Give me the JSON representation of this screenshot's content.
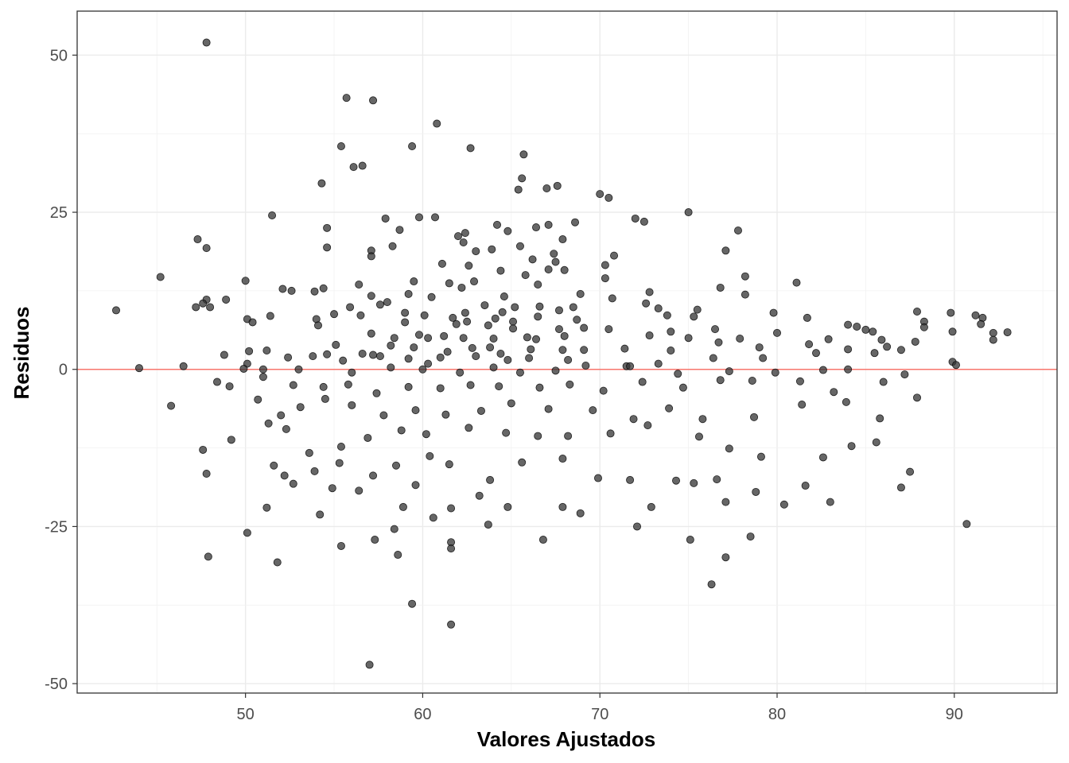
{
  "chart_data": {
    "type": "scatter",
    "title": "",
    "xlabel": "Valores Ajustados",
    "ylabel": "Residuos",
    "xlim": [
      40.5,
      95.8
    ],
    "ylim": [
      -51.5,
      57
    ],
    "x_ticks": [
      50,
      60,
      70,
      80,
      90
    ],
    "x_tick_labels": [
      "50",
      "60",
      "70",
      "80",
      "90"
    ],
    "y_ticks": [
      -50,
      -25,
      0,
      25,
      50
    ],
    "y_tick_labels": [
      "-50",
      "-25",
      "0",
      "25",
      "50"
    ],
    "grid": true,
    "theme": "bw",
    "reference_line": {
      "y": 0,
      "color": "#F8766D"
    },
    "point_color": "#333333",
    "points": [
      [
        47.8,
        52.0
      ],
      [
        55.7,
        43.2
      ],
      [
        57.2,
        42.8
      ],
      [
        60.8,
        39.1
      ],
      [
        55.4,
        35.5
      ],
      [
        59.4,
        35.5
      ],
      [
        62.7,
        35.2
      ],
      [
        65.7,
        34.2
      ],
      [
        56.1,
        32.2
      ],
      [
        56.6,
        32.4
      ],
      [
        65.6,
        30.4
      ],
      [
        65.4,
        28.6
      ],
      [
        67.0,
        28.8
      ],
      [
        67.6,
        29.2
      ],
      [
        54.3,
        29.6
      ],
      [
        70.0,
        27.9
      ],
      [
        70.5,
        27.3
      ],
      [
        51.5,
        24.5
      ],
      [
        57.9,
        24.0
      ],
      [
        59.8,
        24.2
      ],
      [
        60.7,
        24.2
      ],
      [
        72.0,
        24.0
      ],
      [
        72.5,
        23.5
      ],
      [
        75.0,
        25.0
      ],
      [
        64.2,
        23.0
      ],
      [
        66.4,
        22.6
      ],
      [
        67.1,
        23.0
      ],
      [
        68.6,
        23.4
      ],
      [
        64.8,
        22.0
      ],
      [
        77.8,
        22.1
      ],
      [
        54.6,
        22.5
      ],
      [
        58.7,
        22.2
      ],
      [
        62.0,
        21.2
      ],
      [
        62.4,
        21.7
      ],
      [
        67.9,
        20.7
      ],
      [
        47.3,
        20.7
      ],
      [
        47.8,
        19.3
      ],
      [
        54.6,
        19.4
      ],
      [
        58.3,
        19.6
      ],
      [
        62.3,
        20.2
      ],
      [
        63.0,
        18.8
      ],
      [
        63.9,
        19.1
      ],
      [
        65.5,
        19.6
      ],
      [
        67.4,
        18.4
      ],
      [
        57.1,
        18.9
      ],
      [
        57.1,
        18.0
      ],
      [
        66.2,
        17.5
      ],
      [
        67.5,
        17.1
      ],
      [
        70.8,
        18.1
      ],
      [
        77.1,
        18.9
      ],
      [
        61.1,
        16.8
      ],
      [
        62.6,
        16.5
      ],
      [
        64.4,
        15.7
      ],
      [
        65.8,
        15.0
      ],
      [
        67.1,
        15.9
      ],
      [
        68.0,
        15.8
      ],
      [
        70.3,
        16.6
      ],
      [
        78.2,
        14.8
      ],
      [
        45.2,
        14.7
      ],
      [
        50.0,
        14.1
      ],
      [
        56.4,
        13.5
      ],
      [
        59.5,
        14.0
      ],
      [
        61.5,
        13.7
      ],
      [
        62.9,
        14.0
      ],
      [
        66.5,
        13.5
      ],
      [
        70.3,
        14.5
      ],
      [
        76.8,
        13.0
      ],
      [
        81.1,
        13.8
      ],
      [
        52.1,
        12.8
      ],
      [
        52.6,
        12.5
      ],
      [
        53.9,
        12.4
      ],
      [
        54.4,
        12.9
      ],
      [
        59.2,
        12.0
      ],
      [
        60.5,
        11.5
      ],
      [
        62.2,
        13.0
      ],
      [
        64.6,
        11.6
      ],
      [
        68.9,
        12.0
      ],
      [
        70.7,
        11.3
      ],
      [
        72.8,
        12.3
      ],
      [
        78.2,
        11.9
      ],
      [
        47.8,
        11.1
      ],
      [
        48.9,
        11.1
      ],
      [
        57.1,
        11.7
      ],
      [
        58.0,
        10.7
      ],
      [
        57.6,
        10.3
      ],
      [
        63.5,
        10.2
      ],
      [
        66.6,
        10.0
      ],
      [
        68.5,
        9.9
      ],
      [
        47.6,
        10.5
      ],
      [
        48.0,
        9.9
      ],
      [
        47.2,
        9.9
      ],
      [
        42.7,
        9.4
      ],
      [
        55.0,
        8.8
      ],
      [
        55.9,
        9.9
      ],
      [
        59.0,
        9.0
      ],
      [
        62.4,
        9.0
      ],
      [
        64.5,
        9.1
      ],
      [
        65.2,
        9.9
      ],
      [
        67.7,
        9.4
      ],
      [
        72.6,
        10.5
      ],
      [
        73.3,
        9.7
      ],
      [
        75.5,
        9.5
      ],
      [
        79.8,
        9.0
      ],
      [
        87.9,
        9.2
      ],
      [
        89.8,
        9.0
      ],
      [
        91.2,
        8.6
      ],
      [
        91.6,
        8.2
      ],
      [
        50.1,
        8.0
      ],
      [
        50.4,
        7.5
      ],
      [
        51.4,
        8.5
      ],
      [
        54.0,
        8.0
      ],
      [
        56.5,
        8.6
      ],
      [
        60.1,
        8.6
      ],
      [
        61.7,
        8.2
      ],
      [
        64.1,
        8.1
      ],
      [
        65.1,
        7.6
      ],
      [
        66.5,
        8.4
      ],
      [
        68.7,
        7.9
      ],
      [
        73.8,
        8.6
      ],
      [
        75.3,
        8.4
      ],
      [
        81.7,
        8.2
      ],
      [
        84.0,
        7.1
      ],
      [
        84.5,
        6.8
      ],
      [
        85.0,
        6.3
      ],
      [
        88.3,
        7.6
      ],
      [
        91.5,
        7.2
      ],
      [
        54.1,
        7.0
      ],
      [
        59.0,
        7.5
      ],
      [
        61.9,
        7.2
      ],
      [
        62.5,
        7.6
      ],
      [
        63.7,
        7.0
      ],
      [
        65.1,
        6.5
      ],
      [
        67.7,
        6.4
      ],
      [
        69.1,
        6.6
      ],
      [
        70.5,
        6.4
      ],
      [
        74.0,
        6.0
      ],
      [
        76.5,
        6.4
      ],
      [
        80.0,
        5.8
      ],
      [
        85.4,
        6.0
      ],
      [
        88.3,
        6.7
      ],
      [
        89.9,
        6.0
      ],
      [
        92.2,
        5.8
      ],
      [
        93.0,
        5.9
      ],
      [
        57.1,
        5.7
      ],
      [
        58.4,
        5.0
      ],
      [
        59.8,
        5.5
      ],
      [
        60.3,
        5.0
      ],
      [
        61.2,
        5.3
      ],
      [
        62.3,
        5.0
      ],
      [
        64.0,
        4.9
      ],
      [
        65.9,
        5.1
      ],
      [
        66.4,
        4.8
      ],
      [
        68.0,
        5.3
      ],
      [
        72.8,
        5.4
      ],
      [
        75.0,
        5.0
      ],
      [
        77.9,
        4.9
      ],
      [
        81.8,
        4.0
      ],
      [
        85.9,
        4.7
      ],
      [
        87.8,
        4.4
      ],
      [
        92.2,
        4.7
      ],
      [
        51.2,
        3.0
      ],
      [
        53.8,
        2.1
      ],
      [
        55.1,
        3.9
      ],
      [
        56.6,
        2.5
      ],
      [
        57.2,
        2.3
      ],
      [
        58.2,
        3.8
      ],
      [
        59.5,
        3.5
      ],
      [
        61.4,
        2.8
      ],
      [
        62.8,
        3.4
      ],
      [
        63.8,
        3.5
      ],
      [
        64.4,
        2.5
      ],
      [
        66.1,
        3.2
      ],
      [
        67.9,
        3.1
      ],
      [
        69.1,
        3.1
      ],
      [
        71.4,
        3.3
      ],
      [
        74.0,
        3.0
      ],
      [
        76.7,
        4.3
      ],
      [
        79.0,
        3.5
      ],
      [
        82.9,
        4.8
      ],
      [
        84.0,
        3.2
      ],
      [
        86.2,
        3.6
      ],
      [
        87.0,
        3.1
      ],
      [
        48.8,
        2.3
      ],
      [
        50.2,
        2.9
      ],
      [
        50.1,
        0.9
      ],
      [
        52.4,
        1.9
      ],
      [
        54.6,
        2.4
      ],
      [
        55.5,
        1.4
      ],
      [
        57.6,
        2.1
      ],
      [
        59.2,
        1.7
      ],
      [
        60.3,
        0.9
      ],
      [
        61.0,
        1.9
      ],
      [
        63.0,
        2.1
      ],
      [
        64.8,
        1.5
      ],
      [
        66.0,
        1.8
      ],
      [
        68.2,
        1.5
      ],
      [
        71.5,
        0.5
      ],
      [
        73.3,
        0.9
      ],
      [
        76.4,
        1.8
      ],
      [
        79.2,
        1.8
      ],
      [
        82.2,
        2.6
      ],
      [
        85.5,
        2.6
      ],
      [
        89.9,
        1.2
      ],
      [
        90.1,
        0.7
      ],
      [
        44.0,
        0.2
      ],
      [
        46.5,
        0.5
      ],
      [
        49.9,
        0.1
      ],
      [
        51.0,
        0.0
      ],
      [
        53.0,
        0.0
      ],
      [
        56.0,
        -0.5
      ],
      [
        58.2,
        0.3
      ],
      [
        60.0,
        0.0
      ],
      [
        62.1,
        -0.5
      ],
      [
        64.0,
        0.3
      ],
      [
        65.5,
        -0.5
      ],
      [
        67.5,
        -0.2
      ],
      [
        69.2,
        0.6
      ],
      [
        71.7,
        0.5
      ],
      [
        74.4,
        -0.7
      ],
      [
        77.3,
        -0.3
      ],
      [
        79.9,
        -0.5
      ],
      [
        82.6,
        -0.1
      ],
      [
        84.0,
        0.0
      ],
      [
        87.2,
        -0.8
      ],
      [
        48.4,
        -2.0
      ],
      [
        49.1,
        -2.7
      ],
      [
        51.0,
        -1.2
      ],
      [
        52.7,
        -2.5
      ],
      [
        54.4,
        -2.8
      ],
      [
        55.8,
        -2.4
      ],
      [
        57.4,
        -3.8
      ],
      [
        59.2,
        -2.8
      ],
      [
        61.0,
        -3.0
      ],
      [
        62.7,
        -2.5
      ],
      [
        64.3,
        -2.7
      ],
      [
        66.6,
        -2.9
      ],
      [
        68.3,
        -2.4
      ],
      [
        70.2,
        -3.4
      ],
      [
        72.4,
        -2.0
      ],
      [
        74.7,
        -2.9
      ],
      [
        76.8,
        -1.7
      ],
      [
        78.6,
        -1.8
      ],
      [
        81.3,
        -1.9
      ],
      [
        83.2,
        -3.6
      ],
      [
        86.0,
        -2.0
      ],
      [
        87.9,
        -4.5
      ],
      [
        45.8,
        -5.8
      ],
      [
        47.6,
        -12.8
      ],
      [
        49.2,
        -11.2
      ],
      [
        51.3,
        -8.6
      ],
      [
        52.3,
        -9.5
      ],
      [
        53.1,
        -6.0
      ],
      [
        54.5,
        -4.7
      ],
      [
        56.0,
        -5.7
      ],
      [
        57.8,
        -7.3
      ],
      [
        59.6,
        -6.5
      ],
      [
        61.3,
        -7.2
      ],
      [
        63.3,
        -6.6
      ],
      [
        65.0,
        -5.4
      ],
      [
        67.1,
        -6.3
      ],
      [
        69.6,
        -6.5
      ],
      [
        71.9,
        -7.9
      ],
      [
        73.9,
        -6.2
      ],
      [
        75.8,
        -7.9
      ],
      [
        78.7,
        -7.6
      ],
      [
        81.4,
        -5.6
      ],
      [
        83.9,
        -5.2
      ],
      [
        85.8,
        -7.8
      ],
      [
        50.7,
        -4.8
      ],
      [
        52.0,
        -7.3
      ],
      [
        53.6,
        -13.3
      ],
      [
        55.4,
        -12.3
      ],
      [
        56.9,
        -10.9
      ],
      [
        58.8,
        -9.7
      ],
      [
        60.2,
        -10.3
      ],
      [
        62.6,
        -9.3
      ],
      [
        64.7,
        -10.1
      ],
      [
        66.5,
        -10.6
      ],
      [
        68.2,
        -10.6
      ],
      [
        70.6,
        -10.2
      ],
      [
        72.7,
        -8.9
      ],
      [
        75.6,
        -10.7
      ],
      [
        77.3,
        -12.6
      ],
      [
        79.1,
        -13.9
      ],
      [
        82.6,
        -14.0
      ],
      [
        85.6,
        -11.6
      ],
      [
        47.8,
        -16.6
      ],
      [
        51.6,
        -15.3
      ],
      [
        52.2,
        -16.9
      ],
      [
        53.9,
        -16.2
      ],
      [
        55.3,
        -14.9
      ],
      [
        57.2,
        -16.9
      ],
      [
        58.5,
        -15.3
      ],
      [
        60.4,
        -13.8
      ],
      [
        61.5,
        -15.1
      ],
      [
        63.8,
        -17.6
      ],
      [
        65.6,
        -14.8
      ],
      [
        67.9,
        -14.2
      ],
      [
        69.9,
        -17.3
      ],
      [
        71.7,
        -17.6
      ],
      [
        74.3,
        -17.7
      ],
      [
        76.6,
        -17.5
      ],
      [
        78.8,
        -19.5
      ],
      [
        81.6,
        -18.5
      ],
      [
        84.2,
        -12.2
      ],
      [
        87.5,
        -16.3
      ],
      [
        51.2,
        -22.0
      ],
      [
        52.7,
        -18.2
      ],
      [
        54.9,
        -18.9
      ],
      [
        56.4,
        -19.3
      ],
      [
        58.9,
        -21.9
      ],
      [
        59.6,
        -18.4
      ],
      [
        61.6,
        -22.1
      ],
      [
        63.2,
        -20.1
      ],
      [
        64.8,
        -21.9
      ],
      [
        67.9,
        -21.9
      ],
      [
        68.9,
        -22.9
      ],
      [
        72.9,
        -21.9
      ],
      [
        75.3,
        -18.1
      ],
      [
        77.1,
        -21.1
      ],
      [
        80.4,
        -21.5
      ],
      [
        83.0,
        -21.1
      ],
      [
        87.0,
        -18.8
      ],
      [
        90.7,
        -24.6
      ],
      [
        50.1,
        -26.0
      ],
      [
        54.2,
        -23.1
      ],
      [
        55.4,
        -28.1
      ],
      [
        57.3,
        -27.1
      ],
      [
        58.4,
        -25.4
      ],
      [
        60.6,
        -23.6
      ],
      [
        61.6,
        -27.5
      ],
      [
        63.7,
        -24.7
      ],
      [
        66.8,
        -27.1
      ],
      [
        72.1,
        -25.0
      ],
      [
        75.1,
        -27.1
      ],
      [
        78.5,
        -26.6
      ],
      [
        47.9,
        -29.8
      ],
      [
        51.8,
        -30.7
      ],
      [
        58.6,
        -29.5
      ],
      [
        61.6,
        -28.5
      ],
      [
        77.1,
        -29.9
      ],
      [
        76.3,
        -34.2
      ],
      [
        59.4,
        -37.3
      ],
      [
        61.6,
        -40.6
      ],
      [
        57.0,
        -47.0
      ]
    ]
  }
}
